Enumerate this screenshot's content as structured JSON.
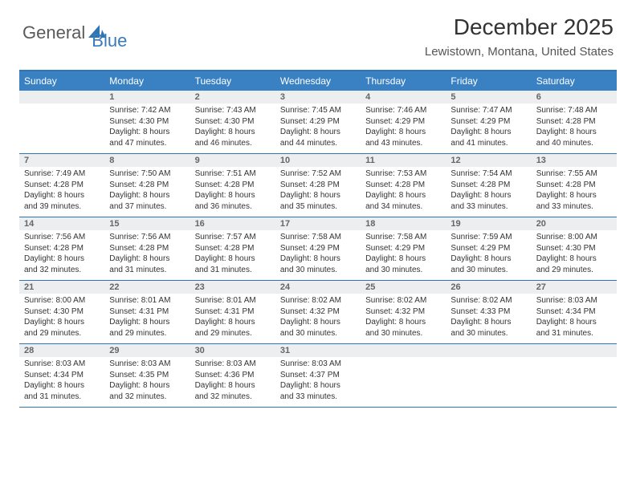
{
  "logo": {
    "part1": "General",
    "part2": "Blue"
  },
  "title": "December 2025",
  "location": "Lewistown, Montana, United States",
  "colors": {
    "header_bg": "#3a81c4",
    "header_text": "#ffffff",
    "rule": "#2e75b6",
    "band": "#eceeef",
    "logo_gray": "#5a5a5a",
    "logo_blue": "#3a7ab8"
  },
  "day_headers": [
    "Sunday",
    "Monday",
    "Tuesday",
    "Wednesday",
    "Thursday",
    "Friday",
    "Saturday"
  ],
  "weeks": [
    [
      {
        "n": "",
        "sr": "",
        "ss": "",
        "dl": ""
      },
      {
        "n": "1",
        "sr": "Sunrise: 7:42 AM",
        "ss": "Sunset: 4:30 PM",
        "dl": "Daylight: 8 hours and 47 minutes."
      },
      {
        "n": "2",
        "sr": "Sunrise: 7:43 AM",
        "ss": "Sunset: 4:30 PM",
        "dl": "Daylight: 8 hours and 46 minutes."
      },
      {
        "n": "3",
        "sr": "Sunrise: 7:45 AM",
        "ss": "Sunset: 4:29 PM",
        "dl": "Daylight: 8 hours and 44 minutes."
      },
      {
        "n": "4",
        "sr": "Sunrise: 7:46 AM",
        "ss": "Sunset: 4:29 PM",
        "dl": "Daylight: 8 hours and 43 minutes."
      },
      {
        "n": "5",
        "sr": "Sunrise: 7:47 AM",
        "ss": "Sunset: 4:29 PM",
        "dl": "Daylight: 8 hours and 41 minutes."
      },
      {
        "n": "6",
        "sr": "Sunrise: 7:48 AM",
        "ss": "Sunset: 4:28 PM",
        "dl": "Daylight: 8 hours and 40 minutes."
      }
    ],
    [
      {
        "n": "7",
        "sr": "Sunrise: 7:49 AM",
        "ss": "Sunset: 4:28 PM",
        "dl": "Daylight: 8 hours and 39 minutes."
      },
      {
        "n": "8",
        "sr": "Sunrise: 7:50 AM",
        "ss": "Sunset: 4:28 PM",
        "dl": "Daylight: 8 hours and 37 minutes."
      },
      {
        "n": "9",
        "sr": "Sunrise: 7:51 AM",
        "ss": "Sunset: 4:28 PM",
        "dl": "Daylight: 8 hours and 36 minutes."
      },
      {
        "n": "10",
        "sr": "Sunrise: 7:52 AM",
        "ss": "Sunset: 4:28 PM",
        "dl": "Daylight: 8 hours and 35 minutes."
      },
      {
        "n": "11",
        "sr": "Sunrise: 7:53 AM",
        "ss": "Sunset: 4:28 PM",
        "dl": "Daylight: 8 hours and 34 minutes."
      },
      {
        "n": "12",
        "sr": "Sunrise: 7:54 AM",
        "ss": "Sunset: 4:28 PM",
        "dl": "Daylight: 8 hours and 33 minutes."
      },
      {
        "n": "13",
        "sr": "Sunrise: 7:55 AM",
        "ss": "Sunset: 4:28 PM",
        "dl": "Daylight: 8 hours and 33 minutes."
      }
    ],
    [
      {
        "n": "14",
        "sr": "Sunrise: 7:56 AM",
        "ss": "Sunset: 4:28 PM",
        "dl": "Daylight: 8 hours and 32 minutes."
      },
      {
        "n": "15",
        "sr": "Sunrise: 7:56 AM",
        "ss": "Sunset: 4:28 PM",
        "dl": "Daylight: 8 hours and 31 minutes."
      },
      {
        "n": "16",
        "sr": "Sunrise: 7:57 AM",
        "ss": "Sunset: 4:28 PM",
        "dl": "Daylight: 8 hours and 31 minutes."
      },
      {
        "n": "17",
        "sr": "Sunrise: 7:58 AM",
        "ss": "Sunset: 4:29 PM",
        "dl": "Daylight: 8 hours and 30 minutes."
      },
      {
        "n": "18",
        "sr": "Sunrise: 7:58 AM",
        "ss": "Sunset: 4:29 PM",
        "dl": "Daylight: 8 hours and 30 minutes."
      },
      {
        "n": "19",
        "sr": "Sunrise: 7:59 AM",
        "ss": "Sunset: 4:29 PM",
        "dl": "Daylight: 8 hours and 30 minutes."
      },
      {
        "n": "20",
        "sr": "Sunrise: 8:00 AM",
        "ss": "Sunset: 4:30 PM",
        "dl": "Daylight: 8 hours and 29 minutes."
      }
    ],
    [
      {
        "n": "21",
        "sr": "Sunrise: 8:00 AM",
        "ss": "Sunset: 4:30 PM",
        "dl": "Daylight: 8 hours and 29 minutes."
      },
      {
        "n": "22",
        "sr": "Sunrise: 8:01 AM",
        "ss": "Sunset: 4:31 PM",
        "dl": "Daylight: 8 hours and 29 minutes."
      },
      {
        "n": "23",
        "sr": "Sunrise: 8:01 AM",
        "ss": "Sunset: 4:31 PM",
        "dl": "Daylight: 8 hours and 29 minutes."
      },
      {
        "n": "24",
        "sr": "Sunrise: 8:02 AM",
        "ss": "Sunset: 4:32 PM",
        "dl": "Daylight: 8 hours and 30 minutes."
      },
      {
        "n": "25",
        "sr": "Sunrise: 8:02 AM",
        "ss": "Sunset: 4:32 PM",
        "dl": "Daylight: 8 hours and 30 minutes."
      },
      {
        "n": "26",
        "sr": "Sunrise: 8:02 AM",
        "ss": "Sunset: 4:33 PM",
        "dl": "Daylight: 8 hours and 30 minutes."
      },
      {
        "n": "27",
        "sr": "Sunrise: 8:03 AM",
        "ss": "Sunset: 4:34 PM",
        "dl": "Daylight: 8 hours and 31 minutes."
      }
    ],
    [
      {
        "n": "28",
        "sr": "Sunrise: 8:03 AM",
        "ss": "Sunset: 4:34 PM",
        "dl": "Daylight: 8 hours and 31 minutes."
      },
      {
        "n": "29",
        "sr": "Sunrise: 8:03 AM",
        "ss": "Sunset: 4:35 PM",
        "dl": "Daylight: 8 hours and 32 minutes."
      },
      {
        "n": "30",
        "sr": "Sunrise: 8:03 AM",
        "ss": "Sunset: 4:36 PM",
        "dl": "Daylight: 8 hours and 32 minutes."
      },
      {
        "n": "31",
        "sr": "Sunrise: 8:03 AM",
        "ss": "Sunset: 4:37 PM",
        "dl": "Daylight: 8 hours and 33 minutes."
      },
      {
        "n": "",
        "sr": "",
        "ss": "",
        "dl": ""
      },
      {
        "n": "",
        "sr": "",
        "ss": "",
        "dl": ""
      },
      {
        "n": "",
        "sr": "",
        "ss": "",
        "dl": ""
      }
    ]
  ]
}
